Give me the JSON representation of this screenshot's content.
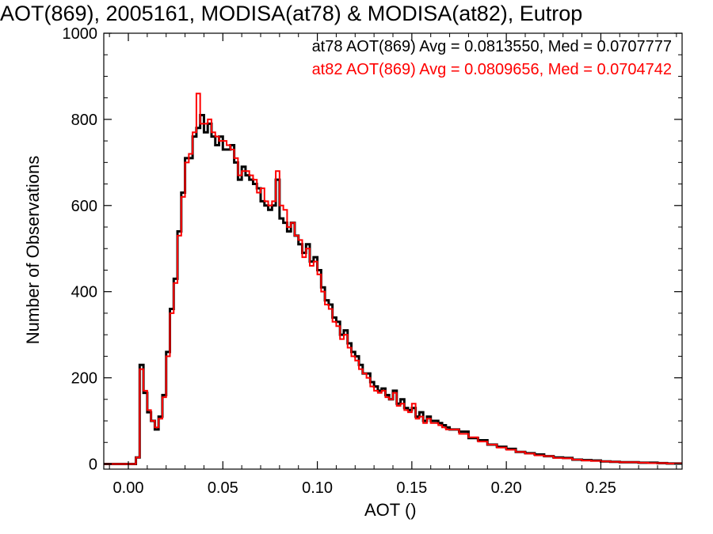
{
  "chart_data": {
    "type": "line",
    "title": "AOT(869), 2005161, MODISA(at78) & MODISA(at82), Eutrop",
    "xlabel": "AOT ()",
    "ylabel": "Number of Observations",
    "xlim": [
      -0.013,
      0.293
    ],
    "ylim": [
      -12,
      1000
    ],
    "xticks": [
      0.0,
      0.05,
      0.1,
      0.15,
      0.2,
      0.25
    ],
    "xtick_labels": [
      "0.00",
      "0.05",
      "0.10",
      "0.15",
      "0.20",
      "0.25"
    ],
    "yticks": [
      0,
      200,
      400,
      600,
      800,
      1000
    ],
    "ytick_labels": [
      "0",
      "200",
      "400",
      "600",
      "800",
      "1000"
    ],
    "grid": false,
    "annotations": [
      {
        "text": "at78 AOT(869) Avg = 0.0813550, Med = 0.0707777",
        "color": "#000000"
      },
      {
        "text": "at82 AOT(869) Avg = 0.0809656, Med = 0.0704742",
        "color": "#ff0000"
      }
    ],
    "series": [
      {
        "color": "#000000",
        "x": [
          -0.013,
          0.004,
          0.006,
          0.008,
          0.01,
          0.012,
          0.014,
          0.016,
          0.018,
          0.02,
          0.022,
          0.024,
          0.026,
          0.028,
          0.03,
          0.032,
          0.034,
          0.036,
          0.038,
          0.04,
          0.042,
          0.044,
          0.046,
          0.048,
          0.05,
          0.052,
          0.054,
          0.056,
          0.058,
          0.06,
          0.062,
          0.064,
          0.066,
          0.068,
          0.07,
          0.072,
          0.074,
          0.076,
          0.078,
          0.08,
          0.082,
          0.084,
          0.086,
          0.088,
          0.09,
          0.092,
          0.094,
          0.096,
          0.098,
          0.1,
          0.102,
          0.104,
          0.106,
          0.108,
          0.11,
          0.112,
          0.114,
          0.116,
          0.118,
          0.12,
          0.122,
          0.124,
          0.126,
          0.128,
          0.13,
          0.132,
          0.134,
          0.136,
          0.138,
          0.14,
          0.142,
          0.144,
          0.146,
          0.148,
          0.15,
          0.152,
          0.154,
          0.156,
          0.158,
          0.16,
          0.162,
          0.164,
          0.166,
          0.168,
          0.17,
          0.175,
          0.18,
          0.185,
          0.19,
          0.195,
          0.2,
          0.205,
          0.21,
          0.215,
          0.22,
          0.225,
          0.23,
          0.235,
          0.24,
          0.245,
          0.25,
          0.255,
          0.26,
          0.265,
          0.27,
          0.275,
          0.28,
          0.285,
          0.29
        ],
        "y": [
          0,
          15,
          230,
          165,
          120,
          100,
          80,
          110,
          160,
          260,
          360,
          430,
          540,
          630,
          710,
          710,
          760,
          780,
          810,
          770,
          790,
          760,
          740,
          760,
          730,
          730,
          740,
          700,
          660,
          690,
          670,
          660,
          650,
          640,
          610,
          600,
          590,
          600,
          660,
          570,
          560,
          540,
          560,
          530,
          510,
          490,
          510,
          470,
          480,
          450,
          410,
          380,
          370,
          340,
          330,
          300,
          310,
          280,
          260,
          250,
          230,
          210,
          210,
          190,
          180,
          170,
          175,
          160,
          150,
          170,
          140,
          150,
          130,
          125,
          130,
          110,
          120,
          100,
          110,
          100,
          100,
          95,
          90,
          85,
          80,
          75,
          60,
          55,
          45,
          40,
          35,
          28,
          25,
          22,
          18,
          15,
          14,
          10,
          9,
          8,
          6,
          5,
          4,
          4,
          3,
          3,
          2,
          1,
          1
        ]
      },
      {
        "color": "#ff0000",
        "x": [
          -0.013,
          0.004,
          0.006,
          0.008,
          0.01,
          0.012,
          0.014,
          0.016,
          0.018,
          0.02,
          0.022,
          0.024,
          0.026,
          0.028,
          0.03,
          0.032,
          0.034,
          0.036,
          0.038,
          0.04,
          0.042,
          0.044,
          0.046,
          0.048,
          0.05,
          0.052,
          0.054,
          0.056,
          0.058,
          0.06,
          0.062,
          0.064,
          0.066,
          0.068,
          0.07,
          0.072,
          0.074,
          0.076,
          0.078,
          0.08,
          0.082,
          0.084,
          0.086,
          0.088,
          0.09,
          0.092,
          0.094,
          0.096,
          0.098,
          0.1,
          0.102,
          0.104,
          0.106,
          0.108,
          0.11,
          0.112,
          0.114,
          0.116,
          0.118,
          0.12,
          0.122,
          0.124,
          0.126,
          0.128,
          0.13,
          0.132,
          0.134,
          0.136,
          0.138,
          0.14,
          0.142,
          0.144,
          0.146,
          0.148,
          0.15,
          0.152,
          0.154,
          0.156,
          0.158,
          0.16,
          0.162,
          0.164,
          0.166,
          0.168,
          0.17,
          0.175,
          0.18,
          0.185,
          0.19,
          0.195,
          0.2,
          0.205,
          0.21,
          0.215,
          0.22,
          0.225,
          0.23,
          0.235,
          0.24,
          0.245,
          0.25,
          0.255,
          0.26,
          0.265,
          0.27,
          0.275,
          0.28,
          0.285,
          0.29
        ],
        "y": [
          0,
          15,
          220,
          170,
          125,
          100,
          85,
          105,
          155,
          250,
          350,
          420,
          530,
          620,
          700,
          720,
          770,
          860,
          790,
          790,
          800,
          770,
          760,
          750,
          750,
          740,
          730,
          710,
          670,
          680,
          680,
          670,
          660,
          630,
          640,
          610,
          600,
          610,
          680,
          600,
          590,
          550,
          560,
          530,
          520,
          480,
          500,
          460,
          470,
          440,
          400,
          370,
          360,
          330,
          320,
          290,
          300,
          270,
          250,
          240,
          220,
          210,
          200,
          180,
          170,
          165,
          170,
          155,
          150,
          165,
          135,
          140,
          125,
          120,
          140,
          105,
          110,
          95,
          105,
          95,
          95,
          90,
          85,
          80,
          80,
          70,
          62,
          52,
          45,
          38,
          33,
          28,
          24,
          20,
          18,
          14,
          13,
          10,
          8,
          7,
          6,
          5,
          4,
          4,
          3,
          2,
          2,
          1,
          1
        ]
      }
    ]
  }
}
